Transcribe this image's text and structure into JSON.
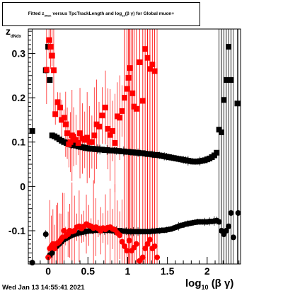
{
  "title": {
    "prefix": "Fitted  z",
    "sub": "dNdx",
    "mid": "  versus TpcTrackLength and log",
    "sub2": "10",
    "suffix": "(β γ) for Global muon+"
  },
  "timestamp": "Wed Jan 13 14:55:41 2021",
  "axis_labels": {
    "x_main": "log",
    "x_sub": "10",
    "x_tail": "(β γ)",
    "y_main": "z",
    "y_sub": "dNdx"
  },
  "chart_data": {
    "type": "scatter",
    "title": "Fitted z_dNdx versus TpcTrackLength and log10(βγ) for Global muon+",
    "xlabel": "log10(β γ)",
    "ylabel": "z_dNdx",
    "xlim": [
      -0.25,
      2.42
    ],
    "ylim": [
      -0.175,
      0.355
    ],
    "x_ticks": [
      0,
      0.5,
      1,
      1.5,
      2
    ],
    "x_tick_labels": [
      "0",
      "0.5",
      "1",
      "1.5",
      "2"
    ],
    "y_ticks": [
      -0.1,
      0,
      0.1,
      0.2,
      0.3
    ],
    "y_tick_labels": [
      "-0.1",
      "0",
      "0.1",
      "0.2",
      "0.3"
    ],
    "grid": false,
    "series": [
      {
        "color": "#000000",
        "marker": "square",
        "band": "upper",
        "points": [
          [
            -0.2,
            0.125
          ],
          [
            -0.03,
            0.262
          ],
          [
            0.0,
            0.315
          ],
          [
            0.02,
            0.24
          ],
          [
            0.05,
            0.115
          ],
          [
            0.08,
            0.113
          ],
          [
            0.11,
            0.11
          ],
          [
            0.14,
            0.106
          ],
          [
            0.17,
            0.103
          ],
          [
            0.2,
            0.1
          ],
          [
            0.23,
            0.098
          ],
          [
            0.26,
            0.096
          ],
          [
            0.29,
            0.094
          ],
          [
            0.32,
            0.093
          ],
          [
            0.35,
            0.092
          ],
          [
            0.38,
            0.09
          ],
          [
            0.41,
            0.089
          ],
          [
            0.44,
            0.088
          ],
          [
            0.47,
            0.087
          ],
          [
            0.5,
            0.086
          ],
          [
            0.53,
            0.085
          ],
          [
            0.56,
            0.085
          ],
          [
            0.59,
            0.084
          ],
          [
            0.62,
            0.084
          ],
          [
            0.65,
            0.083
          ],
          [
            0.68,
            0.083
          ],
          [
            0.71,
            0.082
          ],
          [
            0.74,
            0.082
          ],
          [
            0.77,
            0.081
          ],
          [
            0.8,
            0.081
          ],
          [
            0.83,
            0.081
          ],
          [
            0.86,
            0.08
          ],
          [
            0.89,
            0.08
          ],
          [
            0.92,
            0.079
          ],
          [
            0.95,
            0.079
          ],
          [
            0.98,
            0.078
          ],
          [
            1.01,
            0.078
          ],
          [
            1.04,
            0.077
          ],
          [
            1.07,
            0.077
          ],
          [
            1.1,
            0.076
          ],
          [
            1.13,
            0.076
          ],
          [
            1.16,
            0.075
          ],
          [
            1.19,
            0.075
          ],
          [
            1.22,
            0.074
          ],
          [
            1.25,
            0.073
          ],
          [
            1.28,
            0.073
          ],
          [
            1.31,
            0.072
          ],
          [
            1.34,
            0.071
          ],
          [
            1.37,
            0.071
          ],
          [
            1.4,
            0.07
          ],
          [
            1.43,
            0.069
          ],
          [
            1.46,
            0.068
          ],
          [
            1.49,
            0.067
          ],
          [
            1.52,
            0.066
          ],
          [
            1.55,
            0.065
          ],
          [
            1.58,
            0.064
          ],
          [
            1.61,
            0.063
          ],
          [
            1.64,
            0.062
          ],
          [
            1.67,
            0.061
          ],
          [
            1.7,
            0.06
          ],
          [
            1.73,
            0.059
          ],
          [
            1.76,
            0.058
          ],
          [
            1.79,
            0.057
          ],
          [
            1.82,
            0.056
          ],
          [
            1.85,
            0.056
          ],
          [
            1.88,
            0.056
          ],
          [
            1.91,
            0.057
          ],
          [
            1.94,
            0.058
          ],
          [
            1.97,
            0.059
          ],
          [
            2.0,
            0.061
          ],
          [
            2.03,
            0.063
          ],
          [
            2.06,
            0.066
          ],
          [
            2.09,
            0.07
          ],
          [
            2.12,
            0.076
          ],
          [
            2.15,
            0.128
          ],
          [
            2.18,
            0.122
          ],
          [
            2.21,
            0.195
          ],
          [
            2.24,
            0.24
          ],
          [
            2.27,
            0.315
          ],
          [
            2.3,
            0.24
          ],
          [
            2.38,
            0.187
          ]
        ]
      },
      {
        "color": "#000000",
        "marker": "circle",
        "band": "lower",
        "points": [
          [
            -0.2,
            -0.172
          ],
          [
            -0.03,
            -0.108
          ],
          [
            0.02,
            -0.155
          ],
          [
            0.05,
            -0.15
          ],
          [
            0.08,
            -0.14
          ],
          [
            0.11,
            -0.135
          ],
          [
            0.14,
            -0.13
          ],
          [
            0.17,
            -0.125
          ],
          [
            0.2,
            -0.12
          ],
          [
            0.23,
            -0.117
          ],
          [
            0.26,
            -0.114
          ],
          [
            0.29,
            -0.111
          ],
          [
            0.32,
            -0.109
          ],
          [
            0.35,
            -0.107
          ],
          [
            0.38,
            -0.105
          ],
          [
            0.41,
            -0.104
          ],
          [
            0.44,
            -0.103
          ],
          [
            0.47,
            -0.102
          ],
          [
            0.5,
            -0.101
          ],
          [
            0.53,
            -0.1
          ],
          [
            0.56,
            -0.1
          ],
          [
            0.59,
            -0.099
          ],
          [
            0.62,
            -0.099
          ],
          [
            0.65,
            -0.099
          ],
          [
            0.68,
            -0.099
          ],
          [
            0.71,
            -0.099
          ],
          [
            0.74,
            -0.099
          ],
          [
            0.77,
            -0.099
          ],
          [
            0.8,
            -0.1
          ],
          [
            0.83,
            -0.1
          ],
          [
            0.86,
            -0.1
          ],
          [
            0.89,
            -0.1
          ],
          [
            0.92,
            -0.1
          ],
          [
            0.95,
            -0.101
          ],
          [
            0.98,
            -0.101
          ],
          [
            1.01,
            -0.102
          ],
          [
            1.04,
            -0.102
          ],
          [
            1.07,
            -0.102
          ],
          [
            1.1,
            -0.102
          ],
          [
            1.13,
            -0.102
          ],
          [
            1.16,
            -0.102
          ],
          [
            1.19,
            -0.102
          ],
          [
            1.22,
            -0.102
          ],
          [
            1.25,
            -0.102
          ],
          [
            1.28,
            -0.102
          ],
          [
            1.31,
            -0.101
          ],
          [
            1.34,
            -0.101
          ],
          [
            1.37,
            -0.1
          ],
          [
            1.4,
            -0.1
          ],
          [
            1.43,
            -0.099
          ],
          [
            1.46,
            -0.099
          ],
          [
            1.49,
            -0.098
          ],
          [
            1.52,
            -0.097
          ],
          [
            1.55,
            -0.096
          ],
          [
            1.58,
            -0.094
          ],
          [
            1.61,
            -0.092
          ],
          [
            1.64,
            -0.09
          ],
          [
            1.67,
            -0.088
          ],
          [
            1.7,
            -0.087
          ],
          [
            1.73,
            -0.085
          ],
          [
            1.76,
            -0.084
          ],
          [
            1.79,
            -0.083
          ],
          [
            1.82,
            -0.082
          ],
          [
            1.85,
            -0.081
          ],
          [
            1.88,
            -0.08
          ],
          [
            1.91,
            -0.08
          ],
          [
            1.94,
            -0.08
          ],
          [
            1.97,
            -0.08
          ],
          [
            2.0,
            -0.08
          ],
          [
            2.03,
            -0.079
          ],
          [
            2.06,
            -0.079
          ],
          [
            2.09,
            -0.078
          ],
          [
            2.12,
            -0.077
          ],
          [
            2.15,
            -0.08
          ],
          [
            2.18,
            -0.1
          ],
          [
            2.21,
            -0.108
          ],
          [
            2.24,
            -0.1
          ],
          [
            2.27,
            -0.09
          ],
          [
            2.3,
            -0.06
          ],
          [
            2.33,
            -0.115
          ],
          [
            2.39,
            -0.06
          ]
        ]
      },
      {
        "color": "#ff0000",
        "marker": "square",
        "band": "upper",
        "points": [
          [
            -0.02,
            0.263
          ],
          [
            0.01,
            0.33
          ],
          [
            0.03,
            0.315
          ],
          [
            0.05,
            0.295
          ],
          [
            0.07,
            0.262
          ],
          [
            0.09,
            0.163
          ],
          [
            0.12,
            0.19
          ],
          [
            0.15,
            0.178
          ],
          [
            0.17,
            0.15
          ],
          [
            0.2,
            0.155
          ],
          [
            0.22,
            0.14
          ],
          [
            0.24,
            0.12
          ],
          [
            0.26,
            0.095
          ],
          [
            0.28,
            0.1
          ],
          [
            0.3,
            0.115
          ],
          [
            0.32,
            0.112
          ],
          [
            0.35,
            0.105
          ],
          [
            0.38,
            0.098
          ],
          [
            0.4,
            0.12
          ],
          [
            0.43,
            0.108
          ],
          [
            0.46,
            0.105
          ],
          [
            0.49,
            0.11
          ],
          [
            0.52,
            0.1
          ],
          [
            0.55,
            0.1
          ],
          [
            0.58,
            0.115
          ],
          [
            0.61,
            0.14
          ],
          [
            0.64,
            0.135
          ],
          [
            0.68,
            0.16
          ],
          [
            0.72,
            0.178
          ],
          [
            0.75,
            0.13
          ],
          [
            0.78,
            0.116
          ],
          [
            0.81,
            0.125
          ],
          [
            0.84,
            0.098
          ],
          [
            0.87,
            0.158
          ],
          [
            0.9,
            0.155
          ],
          [
            0.93,
            0.17
          ],
          [
            0.96,
            0.2
          ],
          [
            0.99,
            0.22
          ],
          [
            1.01,
            0.245
          ],
          [
            1.03,
            0.267
          ],
          [
            1.06,
            0.21
          ],
          [
            1.08,
            0.18
          ],
          [
            1.11,
            0.175
          ],
          [
            1.15,
            0.28
          ],
          [
            1.19,
            0.193
          ],
          [
            1.22,
            0.31
          ],
          [
            1.25,
            0.29
          ],
          [
            1.28,
            0.265
          ],
          [
            1.31,
            0.275
          ],
          [
            1.34,
            0.26
          ]
        ]
      },
      {
        "color": "#ff0000",
        "marker": "circle",
        "band": "lower",
        "points": [
          [
            0.0,
            -0.16
          ],
          [
            0.02,
            -0.14
          ],
          [
            0.04,
            -0.135
          ],
          [
            0.06,
            -0.13
          ],
          [
            0.08,
            -0.14
          ],
          [
            0.1,
            -0.13
          ],
          [
            0.12,
            -0.128
          ],
          [
            0.14,
            -0.125
          ],
          [
            0.16,
            -0.12
          ],
          [
            0.18,
            -0.115
          ],
          [
            0.2,
            -0.1
          ],
          [
            0.22,
            -0.112
          ],
          [
            0.25,
            -0.108
          ],
          [
            0.27,
            -0.1
          ],
          [
            0.3,
            -0.102
          ],
          [
            0.33,
            -0.1
          ],
          [
            0.36,
            -0.092
          ],
          [
            0.39,
            -0.09
          ],
          [
            0.42,
            -0.095
          ],
          [
            0.45,
            -0.09
          ],
          [
            0.48,
            -0.085
          ],
          [
            0.51,
            -0.088
          ],
          [
            0.54,
            -0.09
          ],
          [
            0.57,
            -0.094
          ],
          [
            0.6,
            -0.092
          ],
          [
            0.63,
            -0.095
          ],
          [
            0.66,
            -0.1
          ],
          [
            0.69,
            -0.094
          ],
          [
            0.72,
            -0.097
          ],
          [
            0.75,
            -0.093
          ],
          [
            0.78,
            -0.092
          ],
          [
            0.81,
            -0.096
          ],
          [
            0.84,
            -0.098
          ],
          [
            0.87,
            -0.105
          ],
          [
            0.9,
            -0.11
          ],
          [
            0.93,
            -0.125
          ],
          [
            0.96,
            -0.135
          ],
          [
            0.99,
            -0.145
          ],
          [
            1.02,
            -0.122
          ],
          [
            1.05,
            -0.145
          ],
          [
            1.08,
            -0.138
          ],
          [
            1.11,
            -0.13
          ],
          [
            1.15,
            -0.168
          ],
          [
            1.19,
            -0.16
          ],
          [
            1.22,
            -0.14
          ],
          [
            1.25,
            -0.13
          ],
          [
            1.28,
            -0.12
          ],
          [
            1.31,
            -0.14
          ],
          [
            1.34,
            -0.135
          ],
          [
            1.37,
            -0.16
          ]
        ]
      }
    ]
  }
}
